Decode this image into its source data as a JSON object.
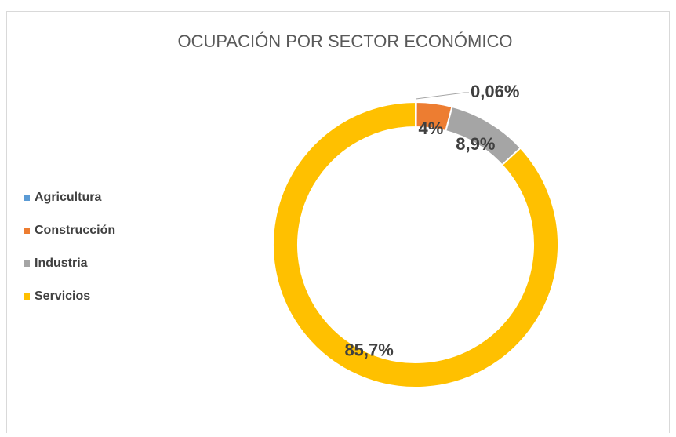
{
  "chart_data": {
    "type": "doughnut",
    "title": "OCUPACIÓN POR SECTOR ECONÓMICO",
    "categories": [
      "Agricultura",
      "Construcción",
      "Industria",
      "Servicios"
    ],
    "values": [
      0.06,
      4,
      8.9,
      85.7
    ],
    "value_labels": [
      "0,06%",
      "4%",
      "8,9%",
      "85,7%"
    ],
    "colors": [
      "#5b9bd5",
      "#ed7d31",
      "#a5a5a5",
      "#ffc000"
    ],
    "legend": "left"
  }
}
